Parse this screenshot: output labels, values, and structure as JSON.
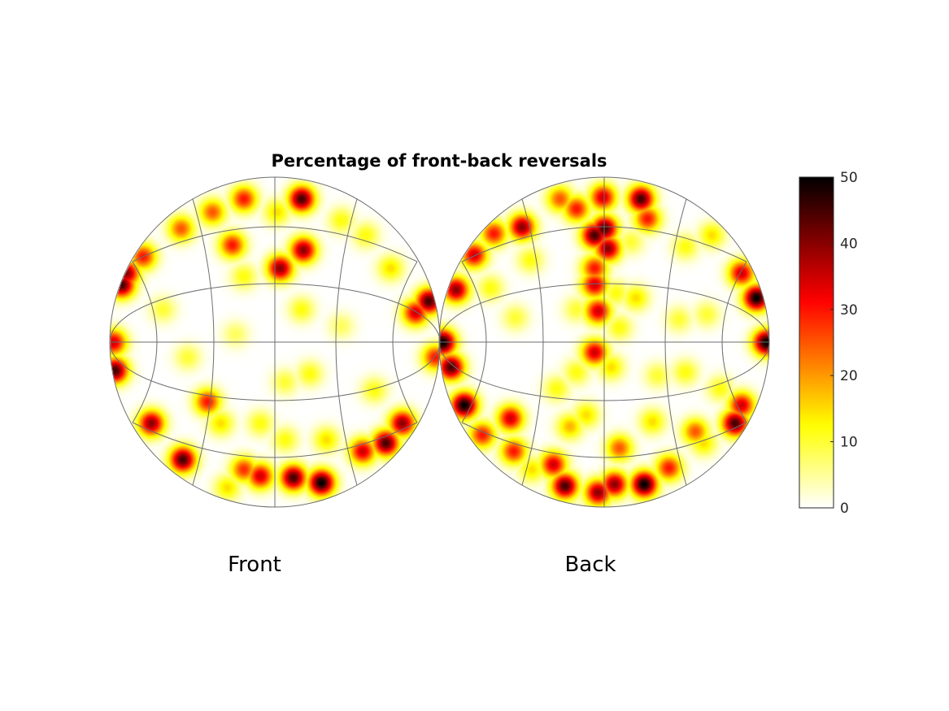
{
  "chart_data": {
    "type": "heatmap",
    "title": "Percentage of front-back reversals",
    "projection": "two hemispheres (sphere projection) with lat/lon grid",
    "colormap": "hot (reversed): white at 0, yellow, red, black at max",
    "clim": [
      0,
      50
    ],
    "colorbar": {
      "placement": "right",
      "ticks": [
        0,
        10,
        20,
        30,
        40,
        50
      ]
    },
    "grid": true,
    "point_format": "[y, z, value] — horizontal and vertical direction components on the unit sphere, value in percent",
    "panels": [
      {
        "label": "Front",
        "points": [
          [
            0.28,
            -0.85,
            50
          ],
          [
            0.11,
            -0.82,
            45
          ],
          [
            -0.09,
            -0.81,
            35
          ],
          [
            -0.19,
            -0.77,
            28
          ],
          [
            0.16,
            0.87,
            45
          ],
          [
            -0.19,
            0.87,
            30
          ],
          [
            -0.38,
            0.79,
            25
          ],
          [
            -0.93,
            0.35,
            45
          ],
          [
            -0.98,
            0,
            35
          ],
          [
            -0.97,
            -0.17,
            45
          ],
          [
            -0.9,
            0.42,
            40
          ],
          [
            0.93,
            0.25,
            45
          ],
          [
            0.85,
            0.18,
            35
          ],
          [
            0.97,
            -0.09,
            30
          ],
          [
            0.03,
            0.45,
            40
          ],
          [
            0.17,
            0.56,
            40
          ],
          [
            -0.26,
            0.59,
            30
          ],
          [
            -0.8,
            0.52,
            30
          ],
          [
            -0.57,
            0.69,
            25
          ],
          [
            -0.75,
            -0.49,
            40
          ],
          [
            -0.56,
            -0.71,
            45
          ],
          [
            -0.41,
            -0.36,
            30
          ],
          [
            0.67,
            -0.61,
            45
          ],
          [
            0.53,
            -0.66,
            35
          ],
          [
            0.77,
            -0.49,
            40
          ],
          [
            -0.19,
            0.4,
            12
          ],
          [
            0.16,
            0.2,
            12
          ],
          [
            -0.24,
            0.05,
            8
          ],
          [
            0.06,
            -0.24,
            10
          ],
          [
            0.21,
            -0.19,
            12
          ],
          [
            -0.33,
            -0.49,
            15
          ],
          [
            -0.09,
            -0.49,
            12
          ],
          [
            0.31,
            -0.59,
            15
          ],
          [
            0.6,
            -0.29,
            12
          ],
          [
            0.7,
            0.45,
            15
          ],
          [
            0.55,
            0.65,
            12
          ],
          [
            -0.29,
            -0.88,
            15
          ],
          [
            -0.53,
            -0.09,
            10
          ],
          [
            -0.68,
            0.2,
            10
          ],
          [
            0.4,
            0.1,
            8
          ],
          [
            0.06,
            -0.59,
            12
          ],
          [
            0.01,
            0.79,
            15
          ],
          [
            0.4,
            0.74,
            12
          ]
        ]
      },
      {
        "label": "Back",
        "points": [
          [
            -0.06,
            0.65,
            45
          ],
          [
            0.02,
            0.57,
            40
          ],
          [
            0,
            0.69,
            45
          ],
          [
            0.22,
            0.87,
            45
          ],
          [
            -0.01,
            0.88,
            35
          ],
          [
            -0.17,
            0.81,
            30
          ],
          [
            -0.27,
            0.87,
            25
          ],
          [
            -0.5,
            0.7,
            40
          ],
          [
            -0.67,
            0.66,
            30
          ],
          [
            -0.79,
            0.53,
            35
          ],
          [
            -0.9,
            0.32,
            40
          ],
          [
            -0.98,
            0,
            50
          ],
          [
            -0.93,
            -0.15,
            45
          ],
          [
            -0.85,
            -0.38,
            50
          ],
          [
            0.92,
            0.27,
            50
          ],
          [
            0.98,
            0,
            50
          ],
          [
            0.83,
            0.42,
            35
          ],
          [
            0.79,
            -0.49,
            45
          ],
          [
            0.83,
            -0.38,
            35
          ],
          [
            0.24,
            -0.86,
            50
          ],
          [
            -0.24,
            -0.87,
            45
          ],
          [
            -0.04,
            -0.91,
            40
          ],
          [
            0.09,
            -0.64,
            25
          ],
          [
            0.06,
            -0.86,
            40
          ],
          [
            -0.57,
            -0.46,
            35
          ],
          [
            -0.74,
            -0.56,
            30
          ],
          [
            -0.55,
            -0.66,
            30
          ],
          [
            -0.31,
            -0.74,
            35
          ],
          [
            -0.06,
            -0.06,
            35
          ],
          [
            -0.04,
            0.19,
            35
          ],
          [
            -0.06,
            0.35,
            35
          ],
          [
            -0.06,
            0.45,
            30
          ],
          [
            0.26,
            0.75,
            30
          ],
          [
            0.55,
            -0.54,
            25
          ],
          [
            0.39,
            -0.76,
            30
          ],
          [
            0.07,
            0.3,
            12
          ],
          [
            0.19,
            0.27,
            15
          ],
          [
            -0.17,
            0.2,
            10
          ],
          [
            0.09,
            0.09,
            12
          ],
          [
            0.04,
            -0.15,
            15
          ],
          [
            -0.17,
            -0.18,
            12
          ],
          [
            -0.29,
            -0.28,
            12
          ],
          [
            -0.11,
            -0.44,
            15
          ],
          [
            -0.21,
            -0.51,
            18
          ],
          [
            0.32,
            -0.2,
            10
          ],
          [
            0.49,
            -0.18,
            12
          ],
          [
            0.29,
            -0.48,
            15
          ],
          [
            0.6,
            -0.61,
            15
          ],
          [
            0.49,
            0.58,
            12
          ],
          [
            0.65,
            0.65,
            15
          ],
          [
            0.62,
            0.17,
            10
          ],
          [
            -0.54,
            0.15,
            10
          ],
          [
            -0.69,
            0.33,
            12
          ],
          [
            -0.45,
            0.5,
            12
          ],
          [
            0.16,
            0.61,
            10
          ],
          [
            0.45,
            0.14,
            10
          ],
          [
            -0.44,
            -0.77,
            15
          ],
          [
            0.7,
            -0.28,
            12
          ]
        ]
      }
    ]
  },
  "colors": {
    "grid": "#6e6e6e",
    "text": "#000000",
    "colorbar_text": "#262626"
  }
}
